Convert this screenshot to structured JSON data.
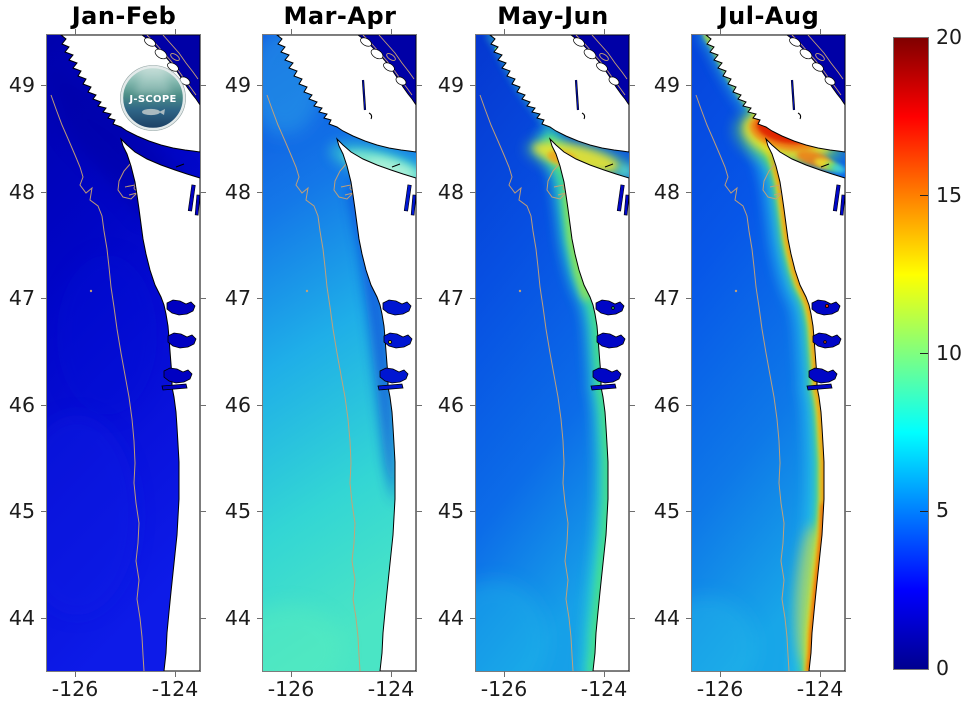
{
  "figure": {
    "panel_titles": [
      "Jan-Feb",
      "Mar-Apr",
      "May-Jun",
      "Jul-Aug"
    ],
    "y_tick_labels": [
      "49",
      "48",
      "47",
      "46",
      "45",
      "44"
    ],
    "x_tick_labels": [
      "-126",
      "-124"
    ],
    "colorbar_tick_labels": [
      "20",
      "15",
      "10",
      "5",
      "0"
    ],
    "logo_text": "J-SCOPE"
  },
  "chart_data": {
    "type": "heatmap",
    "title": "",
    "subtitle": "Four bimonthly map panels of a modeled ocean surface field off the Washington / Oregon coast (J-SCOPE)",
    "panels": [
      {
        "title": "Jan-Feb",
        "values": {
          "offshore": 1.5,
          "coastal_band": 2,
          "strait_of_juan_de_fuca": 1,
          "strait_of_georgia": 1
        }
      },
      {
        "title": "Mar-Apr",
        "values": {
          "offshore_north": 4,
          "offshore_south": 7.5,
          "coastal_band": 3.5,
          "strait_of_juan_de_fuca": 8,
          "strait_of_georgia": 1
        }
      },
      {
        "title": "May-Jun",
        "values": {
          "offshore": 4.5,
          "coastal_band": 9,
          "strait_of_juan_de_fuca": 13,
          "strait_of_georgia": 1.5
        }
      },
      {
        "title": "Jul-Aug",
        "values": {
          "offshore": 5,
          "coastal_band": 13,
          "strait_of_juan_de_fuca": 19,
          "strait_of_georgia": 1.5
        }
      }
    ],
    "x_axis": {
      "ticks": [
        -126,
        -124
      ],
      "range": [
        -126.56,
        -123.5
      ]
    },
    "y_axis": {
      "ticks": [
        49,
        48,
        47,
        46,
        45,
        44
      ],
      "range": [
        43.5,
        49.47
      ]
    },
    "colorbar": {
      "min": 0,
      "max": 20,
      "ticks": [
        20,
        15,
        10,
        5,
        0
      ],
      "colormap": "jet",
      "stops": [
        "#00008F",
        "#0000FF",
        "#00FFFF",
        "#FFFF00",
        "#FF0000",
        "#800000"
      ]
    },
    "annotations": [
      "J-SCOPE logo in first panel"
    ],
    "map_features": [
      "Vancouver Island",
      "Strait of Juan de Fuca",
      "Strait of Georgia",
      "Olympic Peninsula",
      "Grays Harbor",
      "Willapa Bay",
      "Columbia River mouth",
      "shelf-break bathymetry contours"
    ],
    "layout": {
      "grid": false,
      "legend": "colorbar-right"
    }
  }
}
